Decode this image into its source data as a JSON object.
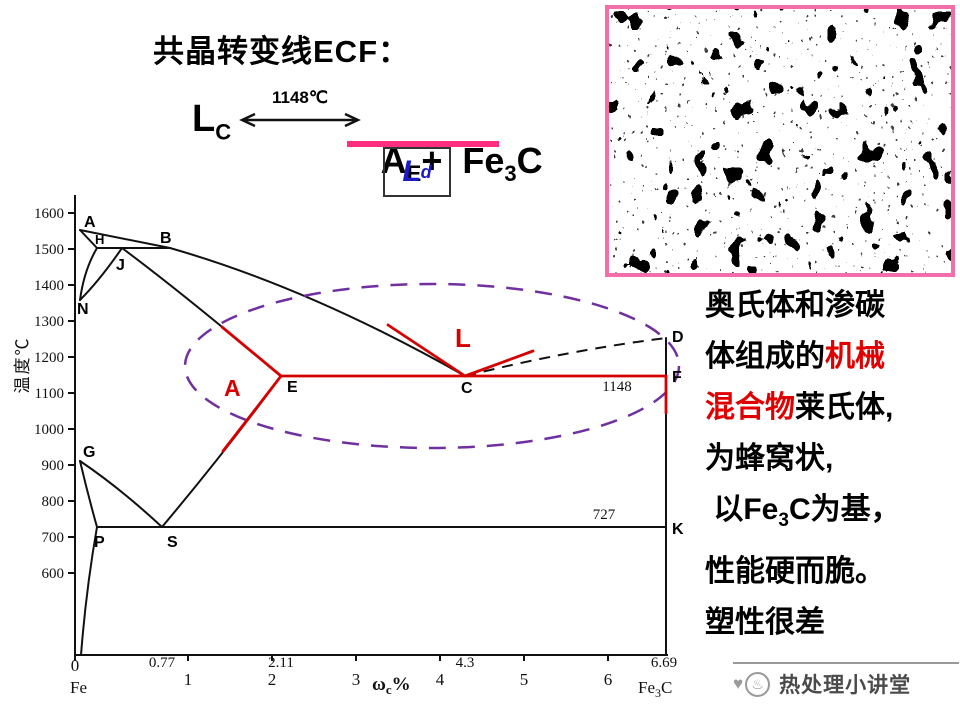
{
  "slide": {
    "title": "共晶转变线ECF：",
    "equation": {
      "lhs": "L",
      "lhs_sub": "C",
      "temp": "1148℃",
      "rhs_a": "A",
      "rhs_a_sub": "E",
      "plus": "+ ",
      "fe": " Fe",
      "fe_sub": "3",
      "c": "C",
      "ld": "L",
      "ld_sub": "d",
      "underline_color": "#ff2e7e",
      "ld_color": "#1a1ac8"
    }
  },
  "diagram": {
    "y_axis_title": "温度℃",
    "x_axis_title_omega": "ω",
    "x_axis_title_sub": "c",
    "x_axis_title_pct": "%",
    "y_ticks": [
      "1600",
      "1500",
      "1400",
      "1300",
      "1200",
      "1100",
      "1000",
      "900",
      "800",
      "700",
      "600"
    ],
    "x_ticks": [
      "0",
      "1",
      "2",
      "3",
      "4",
      "5",
      "6"
    ],
    "x_special_ticks": [
      "0.77",
      "2.11",
      "4.3",
      "6.69"
    ],
    "x_left_label": "Fe",
    "x_right_label_fe": "Fe",
    "x_right_label_sub": "3",
    "x_right_label_c": "C",
    "labels": {
      "A": "A",
      "B": "B",
      "H": "H",
      "J": "J",
      "N": "N",
      "G": "G",
      "P": "P",
      "S": "S",
      "E": "E",
      "C": "C",
      "D": "D",
      "F": "F",
      "K": "K"
    },
    "line_values": {
      "eutectic": "1148",
      "eutectoid": "727"
    },
    "phase_labels": {
      "austenite": "A",
      "liquid": "L"
    },
    "colors": {
      "highlight_red": "#d60000",
      "ellipse_purple": "#7030a0"
    },
    "key_points": {
      "eutectic_temp_c": 1148,
      "eutectoid_temp_c": 727,
      "compositions_wt_pct_c": [
        0.77,
        2.11,
        4.3,
        6.69
      ]
    }
  },
  "micrograph": {
    "border_color": "#f46ea9"
  },
  "description": {
    "red_color": "#e00000",
    "lines": [
      [
        {
          "t": "奥氏体和渗碳"
        }
      ],
      [
        {
          "t": "体组成的"
        },
        {
          "t": "机械",
          "red": true
        }
      ],
      [
        {
          "t": "混合物",
          "red": true
        },
        {
          "t": "莱氏体,"
        }
      ],
      [
        {
          "t": "为蜂窝状,"
        }
      ],
      [
        {
          "t": " 以"
        },
        {
          "t": "Fe"
        },
        {
          "t": "3",
          "sub": true
        },
        {
          "t": "C为基，"
        }
      ],
      [
        {
          "t": "性能硬而脆。"
        }
      ],
      [
        {
          "t": "塑性很差"
        }
      ]
    ]
  },
  "watermark": {
    "text": "热处理小讲堂",
    "icons": {
      "heart": "♥",
      "steam": "♨"
    }
  }
}
